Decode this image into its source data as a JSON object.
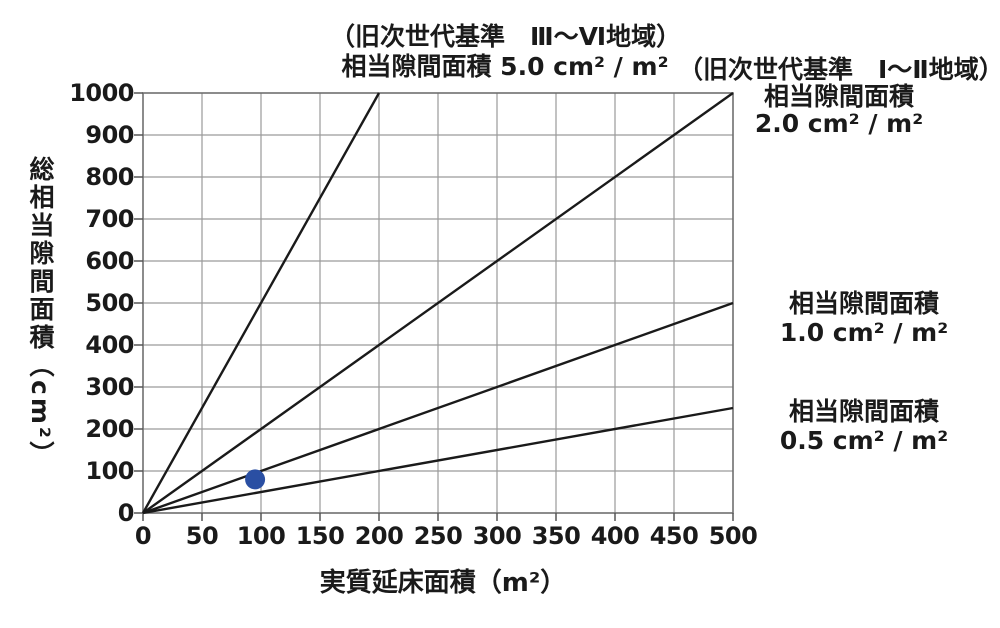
{
  "figure": {
    "background": "#ffffff",
    "text_color": "#1a1a1a"
  },
  "chart_data": {
    "type": "line",
    "xlabel": "実質延床面積（m²）",
    "ylabel": "総相当隙間面積",
    "ylabel_unit": "（cm²）",
    "xlim": [
      0,
      500
    ],
    "ylim": [
      0,
      1000
    ],
    "x_ticks": [
      0,
      50,
      100,
      150,
      200,
      250,
      300,
      350,
      400,
      450,
      500
    ],
    "y_ticks": [
      0,
      100,
      200,
      300,
      400,
      500,
      600,
      700,
      800,
      900,
      1000
    ],
    "grid": "on",
    "grid_color": "#9a9a9a",
    "border_color": "#6f6f6f",
    "tick_color": "#555555",
    "line_color": "#1a1a1a",
    "series": [
      {
        "name": "相当隙間面積 5.0 cm²/m²（旧次世代基準 Ⅲ～Ⅵ地域）",
        "slope_cm2_per_m2": 5.0,
        "points": [
          [
            0,
            0
          ],
          [
            200,
            1000
          ]
        ]
      },
      {
        "name": "相当隙間面積 2.0 cm²/m²（旧次世代基準 Ⅰ～Ⅱ地域）",
        "slope_cm2_per_m2": 2.0,
        "points": [
          [
            0,
            0
          ],
          [
            500,
            1000
          ]
        ]
      },
      {
        "name": "相当隙間面積 1.0 cm²/m²",
        "slope_cm2_per_m2": 1.0,
        "points": [
          [
            0,
            0
          ],
          [
            500,
            500
          ]
        ]
      },
      {
        "name": "相当隙間面積 0.5 cm²/m²",
        "slope_cm2_per_m2": 0.5,
        "points": [
          [
            0,
            0
          ],
          [
            500,
            250
          ]
        ]
      }
    ],
    "marker": {
      "x": 95,
      "y": 80,
      "color": "#2a4fa3",
      "radius_px": 10
    }
  },
  "annotations": {
    "line50": {
      "line1": "（旧次世代基準　Ⅲ～Ⅵ地域）",
      "line2": "相当隙間面積  5.0 cm² / m²"
    },
    "line20": {
      "line1": "（旧次世代基準　Ⅰ～Ⅱ地域）",
      "line2": "相当隙間面積",
      "line3": "2.0 cm² / m²"
    },
    "line10": {
      "line1": "相当隙間面積",
      "line2": "1.0 cm² / m²"
    },
    "line05": {
      "line1": "相当隙間面積",
      "line2": "0.5 cm² / m²"
    }
  }
}
